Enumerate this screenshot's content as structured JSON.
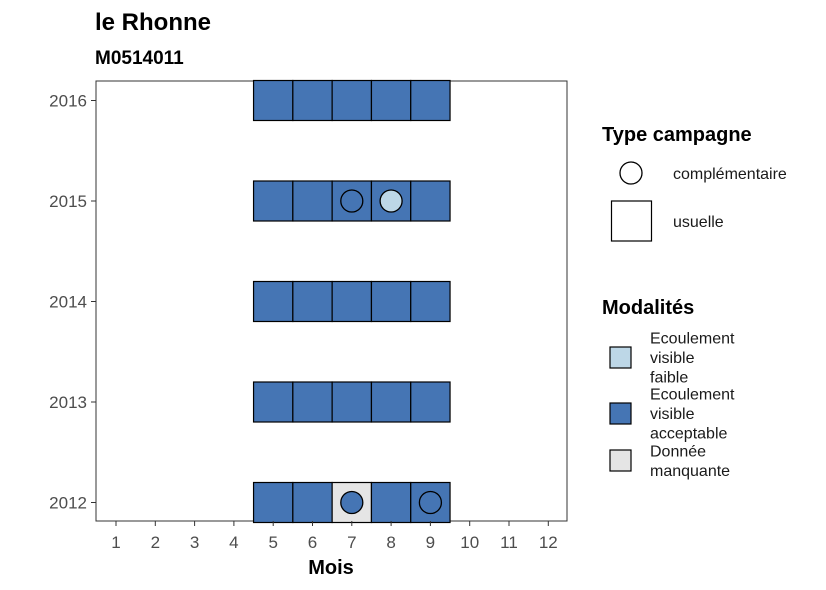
{
  "chart_data": {
    "type": "heatmap",
    "title": "le Rhonne",
    "subtitle": "M0514011",
    "xlabel": "Mois",
    "ylabel": "",
    "x_ticks": [
      "1",
      "2",
      "3",
      "4",
      "5",
      "6",
      "7",
      "8",
      "9",
      "10",
      "11",
      "12"
    ],
    "xlim": [
      0.5,
      12.5
    ],
    "y_ticks": [
      "2016",
      "2015",
      "2014",
      "2013",
      "2012"
    ],
    "grid": false,
    "legend_position": "right",
    "legend_type": {
      "title": "Type campagne",
      "items": [
        {
          "key": "complementaire",
          "label": "complémentaire",
          "shape": "circle"
        },
        {
          "key": "usuelle",
          "label": "usuelle",
          "shape": "square"
        }
      ]
    },
    "legend_modalites": {
      "title": "Modalités",
      "items": [
        {
          "key": "faible",
          "label_lines": [
            "Ecoulement",
            "visible",
            "faible"
          ],
          "color": "#bdd7e7"
        },
        {
          "key": "acceptable",
          "label_lines": [
            "Ecoulement",
            "visible",
            "acceptable"
          ],
          "color": "#4575b4"
        },
        {
          "key": "manquante",
          "label_lines": [
            "Donnée",
            "manquante"
          ],
          "color": "#e5e5e5"
        }
      ]
    },
    "cells": [
      {
        "year": "2016",
        "month": 5,
        "mod": "acceptable"
      },
      {
        "year": "2016",
        "month": 6,
        "mod": "acceptable"
      },
      {
        "year": "2016",
        "month": 7,
        "mod": "acceptable"
      },
      {
        "year": "2016",
        "month": 8,
        "mod": "acceptable"
      },
      {
        "year": "2016",
        "month": 9,
        "mod": "acceptable"
      },
      {
        "year": "2015",
        "month": 5,
        "mod": "acceptable"
      },
      {
        "year": "2015",
        "month": 6,
        "mod": "acceptable"
      },
      {
        "year": "2015",
        "month": 7,
        "mod": "acceptable"
      },
      {
        "year": "2015",
        "month": 8,
        "mod": "acceptable"
      },
      {
        "year": "2015",
        "month": 9,
        "mod": "acceptable"
      },
      {
        "year": "2014",
        "month": 5,
        "mod": "acceptable"
      },
      {
        "year": "2014",
        "month": 6,
        "mod": "acceptable"
      },
      {
        "year": "2014",
        "month": 7,
        "mod": "acceptable"
      },
      {
        "year": "2014",
        "month": 8,
        "mod": "acceptable"
      },
      {
        "year": "2014",
        "month": 9,
        "mod": "acceptable"
      },
      {
        "year": "2013",
        "month": 5,
        "mod": "acceptable"
      },
      {
        "year": "2013",
        "month": 6,
        "mod": "acceptable"
      },
      {
        "year": "2013",
        "month": 7,
        "mod": "acceptable"
      },
      {
        "year": "2013",
        "month": 8,
        "mod": "acceptable"
      },
      {
        "year": "2013",
        "month": 9,
        "mod": "acceptable"
      },
      {
        "year": "2012",
        "month": 5,
        "mod": "acceptable"
      },
      {
        "year": "2012",
        "month": 6,
        "mod": "acceptable"
      },
      {
        "year": "2012",
        "month": 7,
        "mod": "manquante"
      },
      {
        "year": "2012",
        "month": 8,
        "mod": "acceptable"
      },
      {
        "year": "2012",
        "month": 9,
        "mod": "acceptable"
      }
    ],
    "points": [
      {
        "year": "2015",
        "month": 7,
        "mod": "acceptable",
        "type": "complementaire"
      },
      {
        "year": "2015",
        "month": 8,
        "mod": "faible",
        "type": "complementaire"
      },
      {
        "year": "2012",
        "month": 7,
        "mod": "acceptable",
        "type": "complementaire"
      },
      {
        "year": "2012",
        "month": 9,
        "mod": "acceptable",
        "type": "complementaire"
      }
    ]
  }
}
